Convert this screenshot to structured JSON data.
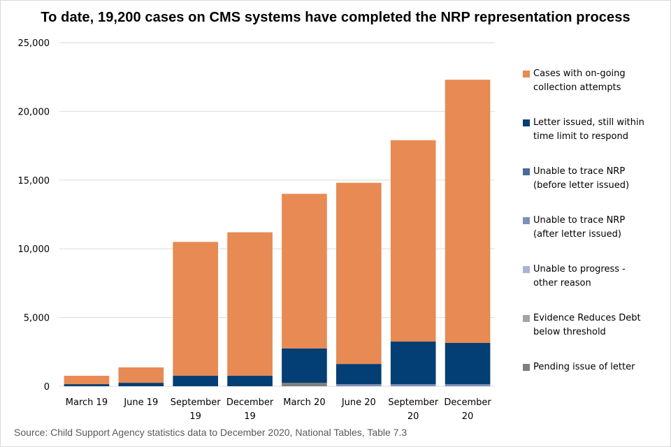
{
  "chart_data": {
    "type": "bar",
    "stacked": true,
    "title": "To date, 19,200 cases on CMS systems have completed the NRP representation process",
    "xlabel": "",
    "ylabel": "",
    "ylim": [
      0,
      25000
    ],
    "yticks": [
      0,
      5000,
      10000,
      15000,
      20000,
      25000
    ],
    "ytick_labels": [
      "0",
      "5,000",
      "10,000",
      "15,000",
      "20,000",
      "25,000"
    ],
    "grid": true,
    "legend_position": "right",
    "categories": [
      [
        "March 19"
      ],
      [
        "June 19"
      ],
      [
        "September",
        "19"
      ],
      [
        "December",
        "19"
      ],
      [
        "March 20"
      ],
      [
        "June 20"
      ],
      [
        "September",
        "20"
      ],
      [
        "December",
        "20"
      ]
    ],
    "series": [
      {
        "name": "Pending issue of letter",
        "color": "#7f7f7f",
        "values": [
          0,
          0,
          0,
          0,
          250,
          0,
          0,
          0
        ]
      },
      {
        "name": "Evidence Reduces Debt below threshold",
        "color": "#a5a5a5",
        "values": [
          0,
          0,
          0,
          0,
          0,
          0,
          0,
          0
        ]
      },
      {
        "name": "Unable to progress - other reason",
        "color": "#a9b4d2",
        "values": [
          0,
          0,
          0,
          0,
          0,
          0,
          0,
          0
        ]
      },
      {
        "name": "Unable to trace NRP (after letter issued)",
        "color": "#7e90b9",
        "values": [
          0,
          0,
          0,
          0,
          0,
          150,
          150,
          150
        ]
      },
      {
        "name": "Unable to trace NRP (before letter issued)",
        "color": "#4b6a9b",
        "values": [
          0,
          0,
          0,
          0,
          0,
          0,
          0,
          0
        ]
      },
      {
        "name": "Letter issued, still within time limit to respond",
        "color": "#033e74",
        "values": [
          150,
          250,
          760,
          760,
          2500,
          1470,
          3100,
          3000
        ]
      },
      {
        "name": "Cases with on-going collection attempts",
        "color": "#e88a53",
        "values": [
          610,
          1120,
          9740,
          10440,
          11250,
          13180,
          14650,
          19150
        ]
      }
    ],
    "legend": [
      {
        "label_lines": [
          "Cases with on-going",
          "collection attempts"
        ],
        "color": "#e88a53"
      },
      {
        "label_lines": [
          "Letter issued, still within",
          "time limit to respond"
        ],
        "color": "#033e74"
      },
      {
        "label_lines": [
          "Unable to trace NRP",
          "(before letter issued)"
        ],
        "color": "#4b6a9b"
      },
      {
        "label_lines": [
          "Unable to trace NRP",
          "(after letter issued)"
        ],
        "color": "#7e90b9"
      },
      {
        "label_lines": [
          "Unable to progress -",
          "other reason"
        ],
        "color": "#a9b4d2"
      },
      {
        "label_lines": [
          "Evidence Reduces Debt",
          "below threshold"
        ],
        "color": "#a5a5a5"
      },
      {
        "label_lines": [
          "Pending issue of letter"
        ],
        "color": "#7f7f7f"
      }
    ]
  },
  "source_text": "Source: Child Support Agency statistics data to December 2020, National Tables, Table 7.3"
}
